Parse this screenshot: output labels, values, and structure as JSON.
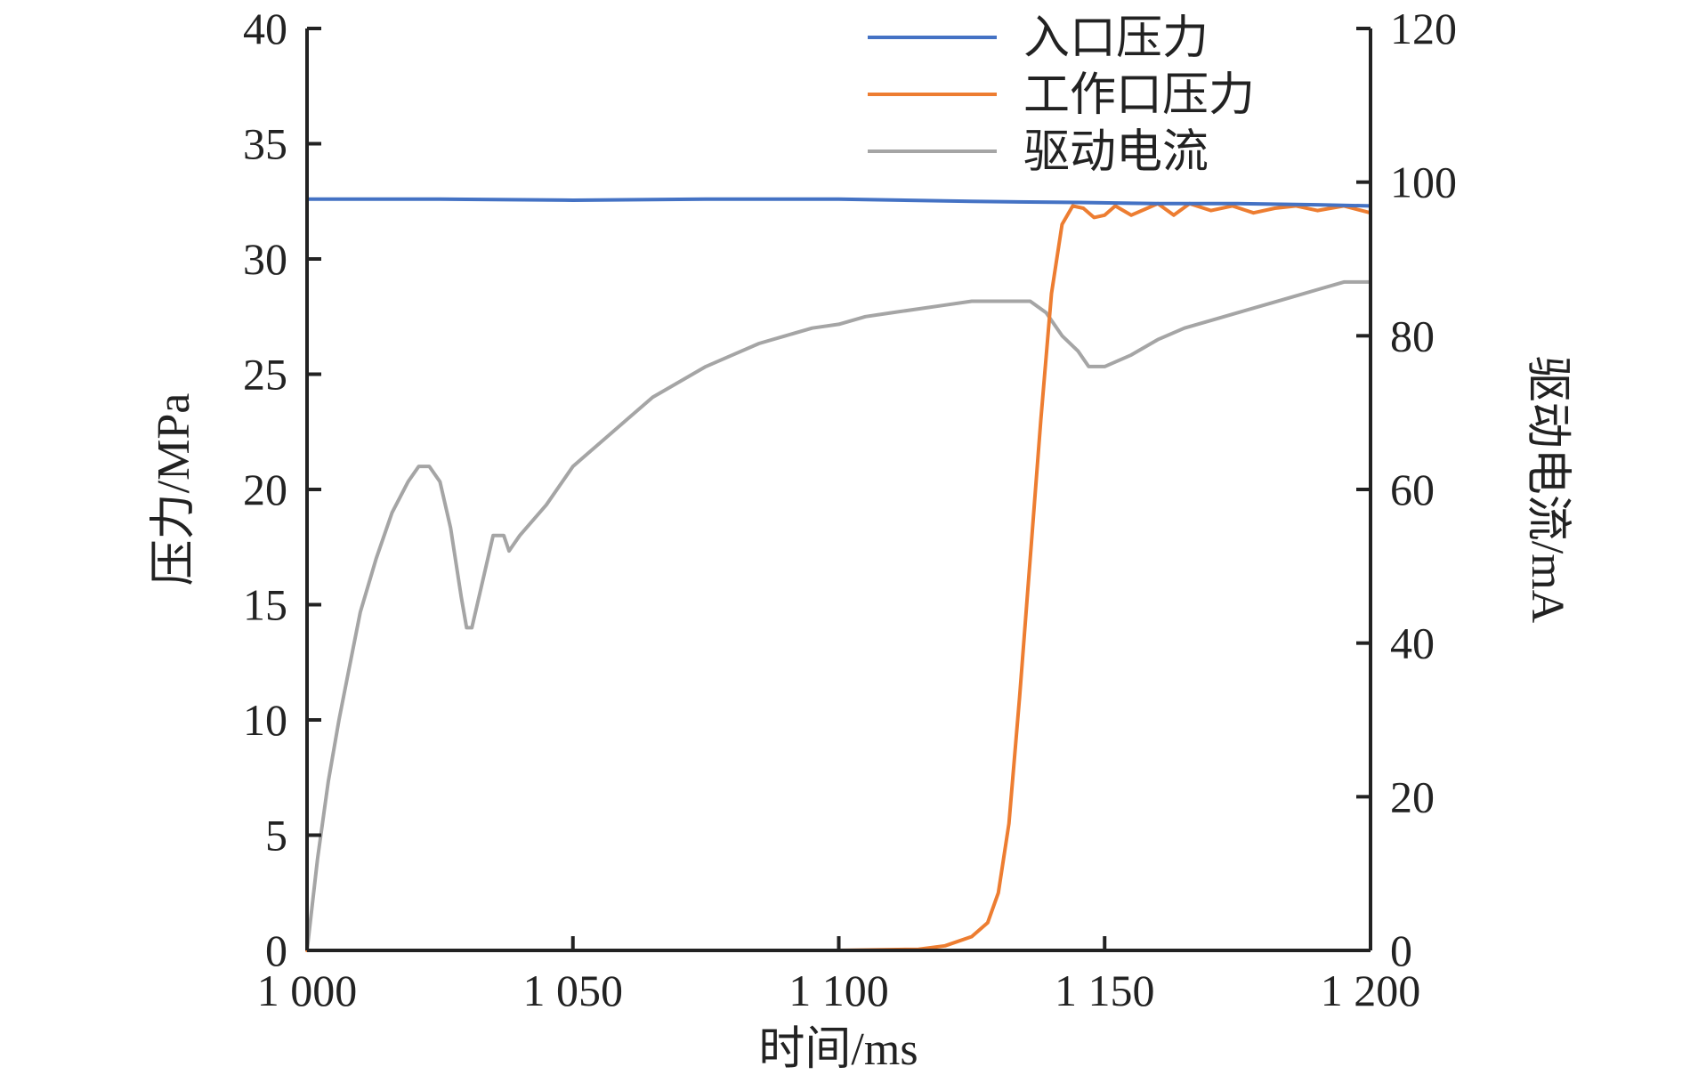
{
  "chart_data": {
    "type": "line",
    "title": "",
    "xlabel": "时间/ms",
    "ylabel": "压力/MPa",
    "y2label": "驱动电流/mA",
    "xlim": [
      1000,
      1200
    ],
    "ylim": [
      0,
      40
    ],
    "y2lim": [
      0,
      120
    ],
    "x_ticks": [
      1000,
      1050,
      1100,
      1150,
      1200
    ],
    "x_tick_labels": [
      "1 000",
      "1 050",
      "1 100",
      "1 150",
      "1 200"
    ],
    "y_ticks": [
      0,
      5,
      10,
      15,
      20,
      25,
      30,
      35,
      40
    ],
    "y_tick_labels": [
      "0",
      "5",
      "10",
      "15",
      "20",
      "25",
      "30",
      "35",
      "40"
    ],
    "y2_ticks": [
      0,
      20,
      40,
      60,
      80,
      100,
      120
    ],
    "y2_tick_labels": [
      "0",
      "20",
      "40",
      "60",
      "80",
      "100",
      "120"
    ],
    "grid": false,
    "legend_position": "top-right",
    "series": [
      {
        "name": "入口压力",
        "axis": "left",
        "color": "#4472c4",
        "x": [
          1000,
          1025,
          1050,
          1075,
          1100,
          1125,
          1145,
          1160,
          1175,
          1190,
          1200
        ],
        "y": [
          32.6,
          32.6,
          32.55,
          32.6,
          32.6,
          32.5,
          32.45,
          32.4,
          32.4,
          32.35,
          32.3
        ]
      },
      {
        "name": "工作口压力",
        "axis": "left",
        "color": "#ed7d31",
        "x": [
          1000,
          1050,
          1100,
          1115,
          1120,
          1125,
          1128,
          1130,
          1132,
          1134,
          1136,
          1138,
          1140,
          1142,
          1144,
          1146,
          1148,
          1150,
          1152,
          1155,
          1158,
          1160,
          1163,
          1166,
          1170,
          1174,
          1178,
          1182,
          1186,
          1190,
          1195,
          1200
        ],
        "y": [
          0,
          0,
          0,
          0.05,
          0.2,
          0.6,
          1.2,
          2.5,
          5.5,
          11,
          17,
          23,
          28.5,
          31.5,
          32.3,
          32.2,
          31.8,
          31.9,
          32.3,
          31.9,
          32.2,
          32.4,
          31.9,
          32.4,
          32.1,
          32.3,
          32.0,
          32.2,
          32.3,
          32.1,
          32.3,
          32.0
        ]
      },
      {
        "name": "驱动电流",
        "axis": "right",
        "color": "#a5a5a5",
        "x": [
          1000,
          1002,
          1004,
          1006,
          1008,
          1010,
          1013,
          1016,
          1019,
          1021,
          1023,
          1025,
          1027,
          1029,
          1030,
          1031,
          1033,
          1035,
          1037,
          1038,
          1040,
          1045,
          1050,
          1055,
          1060,
          1065,
          1070,
          1075,
          1080,
          1085,
          1090,
          1095,
          1100,
          1105,
          1110,
          1115,
          1120,
          1125,
          1130,
          1133,
          1136,
          1139,
          1142,
          1145,
          1147,
          1150,
          1155,
          1160,
          1165,
          1170,
          1175,
          1180,
          1185,
          1190,
          1195,
          1200
        ],
        "y": [
          0,
          12,
          22,
          30,
          37,
          44,
          51,
          57,
          61,
          63,
          63,
          61,
          55,
          46,
          42,
          42,
          48,
          54,
          54,
          52,
          54,
          58,
          63,
          66,
          69,
          72,
          74,
          76,
          77.5,
          79,
          80,
          81,
          81.5,
          82.5,
          83,
          83.5,
          84,
          84.5,
          84.5,
          84.5,
          84.5,
          83,
          80,
          78,
          76,
          76,
          77.5,
          79.5,
          81,
          82,
          83,
          84,
          85,
          86,
          87,
          87
        ]
      }
    ]
  }
}
